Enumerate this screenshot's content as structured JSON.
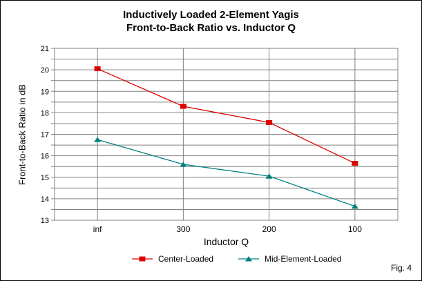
{
  "figure": {
    "title_line1": "Inductively Loaded 2-Element Yagis",
    "title_line2": "Front-to-Back Ratio vs. Inductor Q",
    "fig_label": "Fig. 4"
  },
  "chart_data": {
    "type": "line",
    "title": "Inductively Loaded 2-Element Yagis — Front-to-Back Ratio vs. Inductor Q",
    "categories": [
      "inf",
      "300",
      "200",
      "100"
    ],
    "series": [
      {
        "name": "Center-Loaded",
        "color": "#dd0000",
        "marker": "square",
        "values": [
          20.05,
          18.3,
          17.55,
          15.65
        ]
      },
      {
        "name": "Mid-Element-Loaded",
        "color": "#008080",
        "marker": "triangle",
        "values": [
          16.75,
          15.6,
          15.05,
          13.65
        ]
      }
    ],
    "xlabel": "Inductor Q",
    "ylabel": "Front-to-Back Ratio in dB",
    "ylim": [
      13,
      21
    ],
    "yticks": [
      21,
      20,
      19,
      18,
      17,
      16,
      15,
      14,
      13
    ],
    "y_minor_step": 0.5,
    "grid": true,
    "gridline_color": "#808080",
    "text_color": "#000000",
    "legend_position": "bottom"
  }
}
